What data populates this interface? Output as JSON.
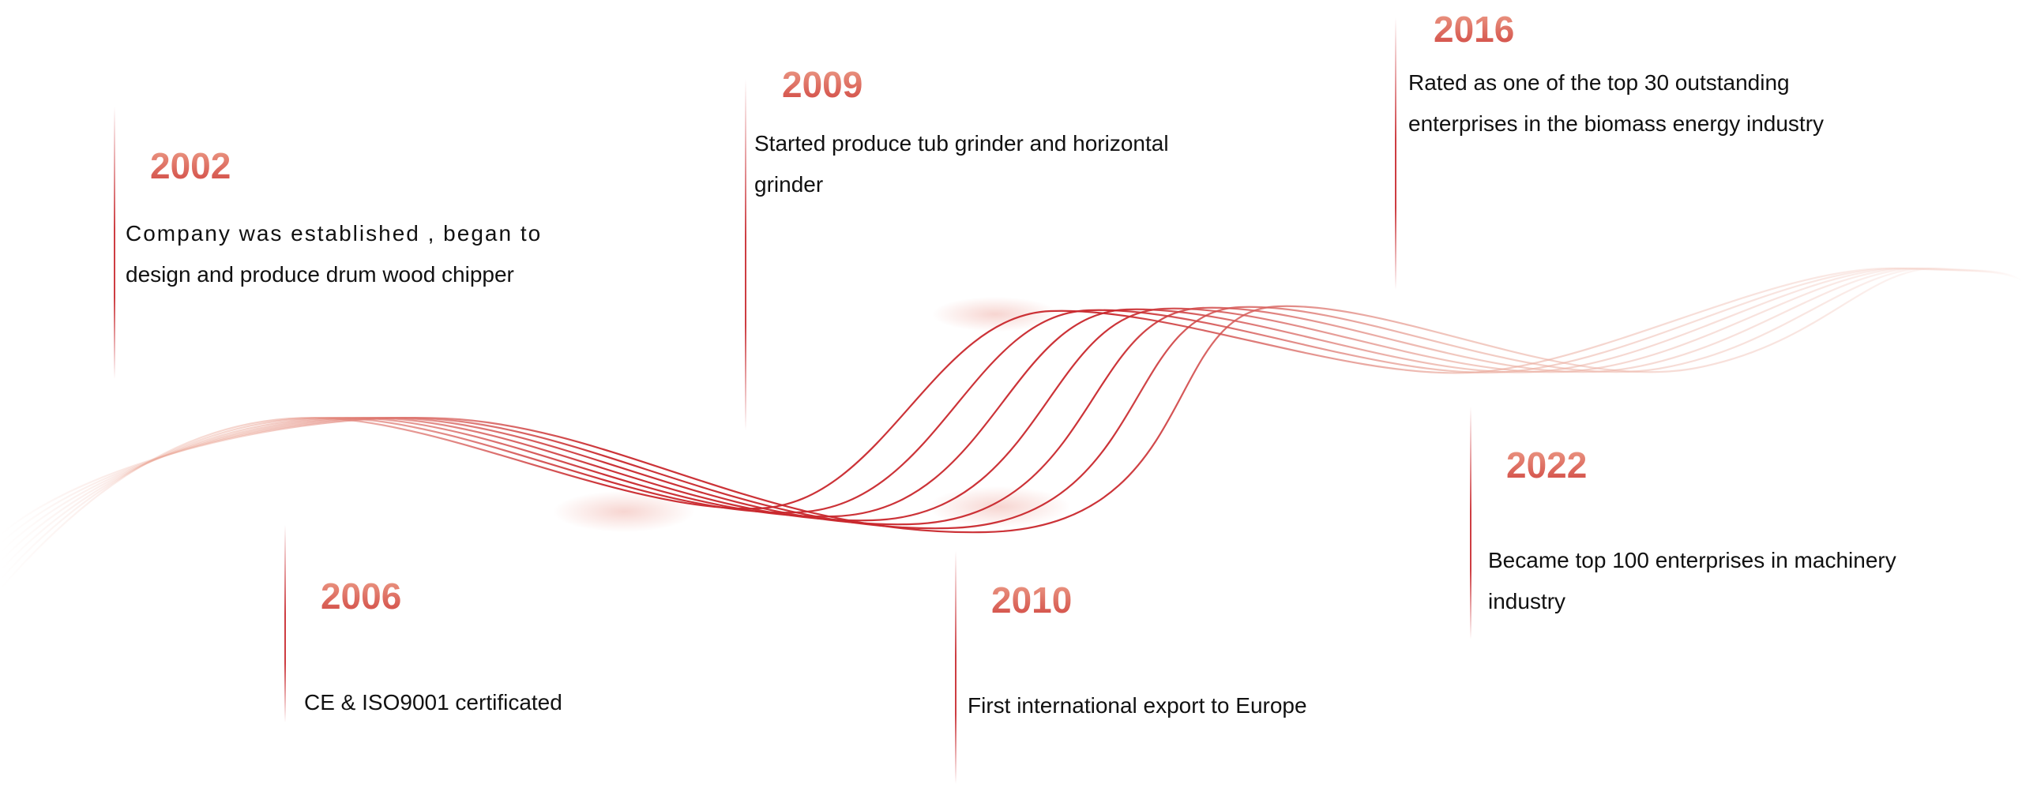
{
  "colors": {
    "accent": "#d0353a",
    "year_gradient_top": "#ec9a86",
    "year_gradient_bottom": "#d24b45",
    "text": "#111111",
    "background": "#ffffff"
  },
  "timeline": {
    "items": [
      {
        "year": "2002",
        "description": "Company was established , began to design and produce drum wood chipper",
        "lines": [
          "Company was established , began to",
          "design and produce drum wood chipper"
        ]
      },
      {
        "year": "2006",
        "description": "CE & ISO9001 certificated",
        "lines": [
          "CE & ISO9001 certificated"
        ]
      },
      {
        "year": "2009",
        "description": "Started produce tub grinder and horizontal grinder",
        "lines": [
          "Started produce tub grinder and horizontal",
          "grinder"
        ]
      },
      {
        "year": "2010",
        "description": "First international export to Europe",
        "lines": [
          "First international export to Europe"
        ]
      },
      {
        "year": "2016",
        "description": "Rated as one of the top 30 outstanding enterprises in the biomass energy industry",
        "lines": [
          "Rated as one of the top 30 outstanding",
          "enterprises in the biomass energy industry"
        ]
      },
      {
        "year": "2022",
        "description": "Became top 100 enterprises in machinery industry",
        "lines": [
          "Became top 100 enterprises in machinery",
          "industry"
        ]
      }
    ]
  }
}
